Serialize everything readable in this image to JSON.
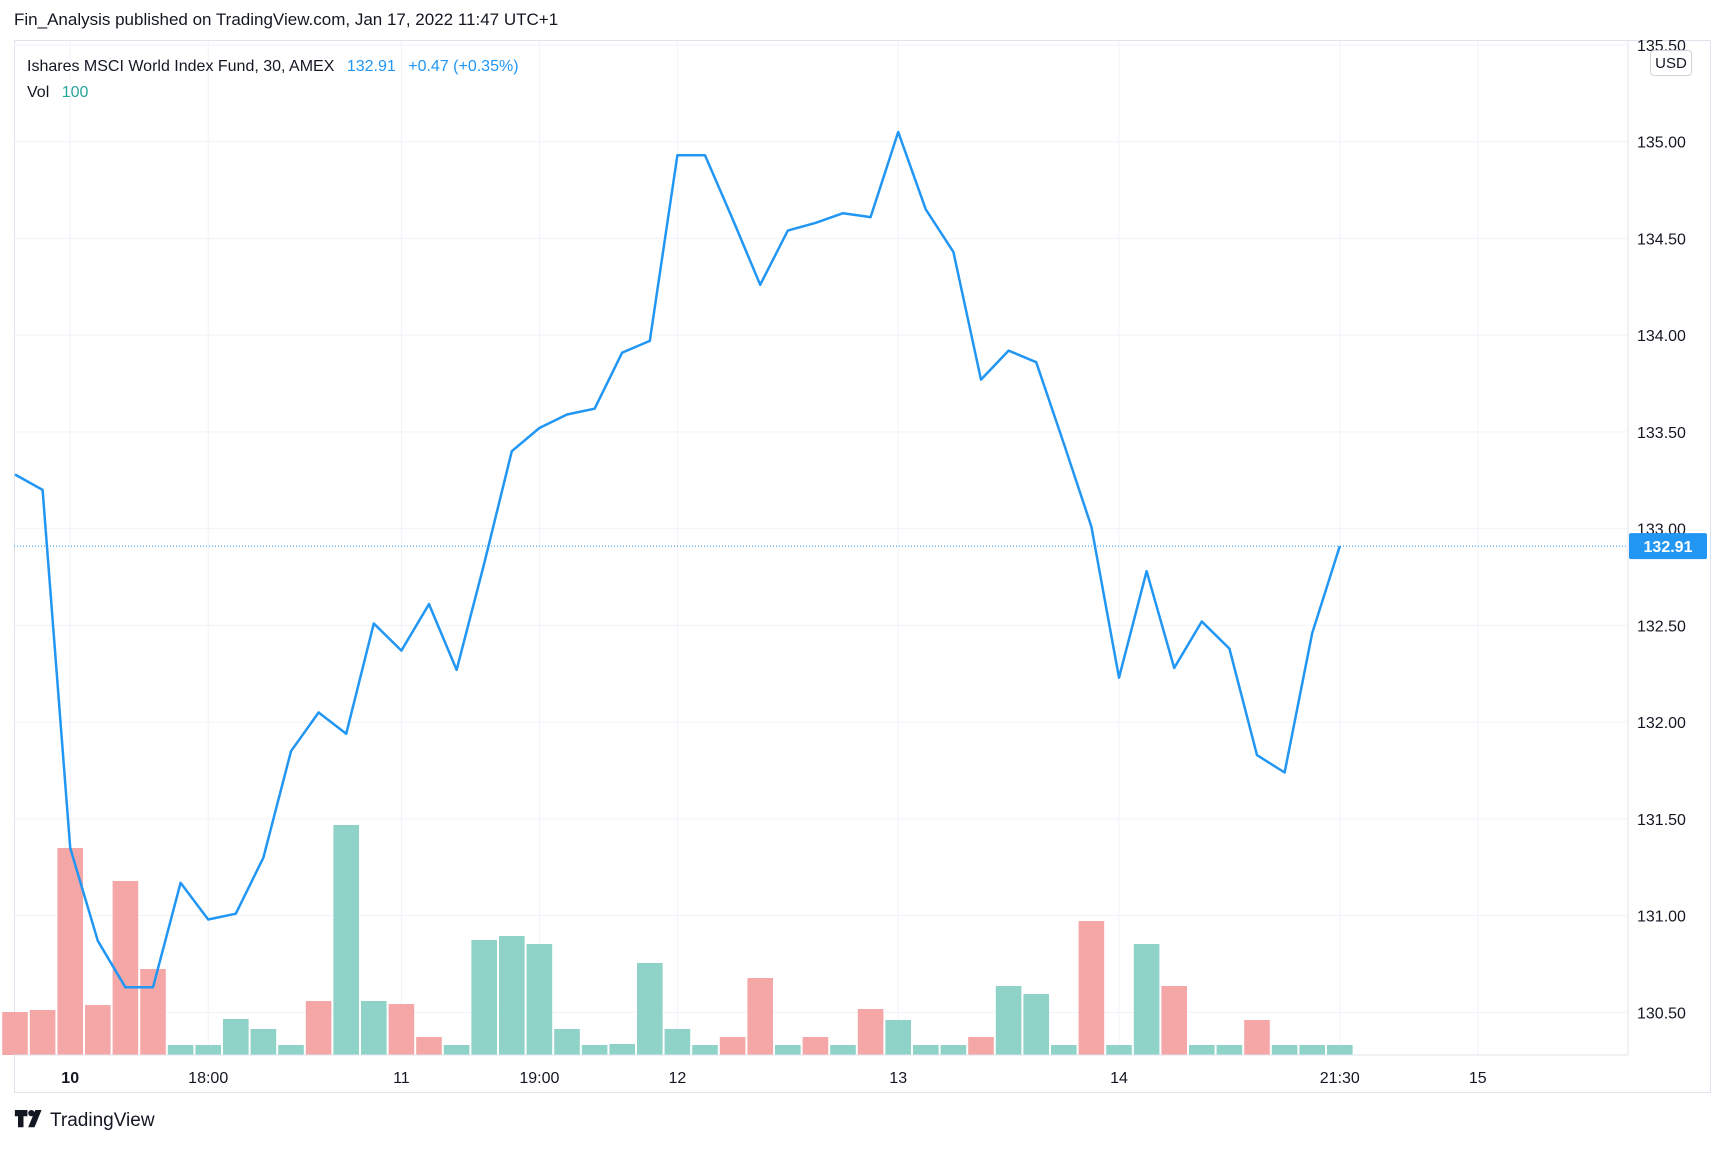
{
  "header": {
    "published_text": "Fin_Analysis published on TradingView.com, Jan 17, 2022 11:47 UTC+1"
  },
  "legend": {
    "symbol": "Ishares MSCI World Index Fund, 30, AMEX",
    "last": "132.91",
    "change": "+0.47 (+0.35%)",
    "vol_label": "Vol",
    "vol_value": "100"
  },
  "currency_button": "USD",
  "price_badge": "132.91",
  "footer": {
    "brand": "TradingView",
    "logo_icon": "tradingview-logo-icon"
  },
  "colors": {
    "line": "#2196f3",
    "vol_up": "#8fd2c8",
    "vol_down": "#f5a6a6",
    "badge": "#2196f3"
  },
  "chart_data": {
    "type": "line",
    "series": [
      {
        "name": "Ishares MSCI World Index Fund",
        "values": [
          133.28,
          133.2,
          131.35,
          130.87,
          130.63,
          130.63,
          131.17,
          130.98,
          131.01,
          131.3,
          131.85,
          132.05,
          131.94,
          132.51,
          132.37,
          132.61,
          132.27,
          132.82,
          133.4,
          133.52,
          133.59,
          133.62,
          133.91,
          133.97,
          134.93,
          134.93,
          134.6,
          134.26,
          134.54,
          134.58,
          134.63,
          134.61,
          135.05,
          134.65,
          134.43,
          133.77,
          133.92,
          133.86,
          133.44,
          133.01,
          132.23,
          132.78,
          132.28,
          132.52,
          132.38,
          131.83,
          131.74,
          132.46,
          132.91
        ]
      }
    ],
    "volume": [
      {
        "v": 43,
        "dir": "down"
      },
      {
        "v": 45,
        "dir": "down"
      },
      {
        "v": 207,
        "dir": "down"
      },
      {
        "v": 50,
        "dir": "down"
      },
      {
        "v": 174,
        "dir": "down"
      },
      {
        "v": 86,
        "dir": "down"
      },
      {
        "v": 10,
        "dir": "up"
      },
      {
        "v": 10,
        "dir": "up"
      },
      {
        "v": 36,
        "dir": "up"
      },
      {
        "v": 26,
        "dir": "up"
      },
      {
        "v": 10,
        "dir": "up"
      },
      {
        "v": 54,
        "dir": "down"
      },
      {
        "v": 230,
        "dir": "up"
      },
      {
        "v": 54,
        "dir": "up"
      },
      {
        "v": 51,
        "dir": "down"
      },
      {
        "v": 18,
        "dir": "down"
      },
      {
        "v": 10,
        "dir": "up"
      },
      {
        "v": 115,
        "dir": "up"
      },
      {
        "v": 119,
        "dir": "up"
      },
      {
        "v": 111,
        "dir": "up"
      },
      {
        "v": 26,
        "dir": "up"
      },
      {
        "v": 10,
        "dir": "up"
      },
      {
        "v": 11,
        "dir": "up"
      },
      {
        "v": 92,
        "dir": "up"
      },
      {
        "v": 26,
        "dir": "up"
      },
      {
        "v": 10,
        "dir": "up"
      },
      {
        "v": 18,
        "dir": "down"
      },
      {
        "v": 77,
        "dir": "down"
      },
      {
        "v": 10,
        "dir": "up"
      },
      {
        "v": 18,
        "dir": "down"
      },
      {
        "v": 10,
        "dir": "up"
      },
      {
        "v": 46,
        "dir": "down"
      },
      {
        "v": 35,
        "dir": "up"
      },
      {
        "v": 10,
        "dir": "up"
      },
      {
        "v": 10,
        "dir": "up"
      },
      {
        "v": 18,
        "dir": "down"
      },
      {
        "v": 69,
        "dir": "up"
      },
      {
        "v": 61,
        "dir": "up"
      },
      {
        "v": 10,
        "dir": "up"
      },
      {
        "v": 134,
        "dir": "down"
      },
      {
        "v": 10,
        "dir": "up"
      },
      {
        "v": 111,
        "dir": "up"
      },
      {
        "v": 69,
        "dir": "down"
      },
      {
        "v": 10,
        "dir": "up"
      },
      {
        "v": 10,
        "dir": "up"
      },
      {
        "v": 35,
        "dir": "down"
      },
      {
        "v": 10,
        "dir": "up"
      },
      {
        "v": 10,
        "dir": "up"
      },
      {
        "v": 10,
        "dir": "up"
      }
    ],
    "x_ticks": [
      {
        "label": "10",
        "index": 2,
        "bold": true
      },
      {
        "label": "18:00",
        "index": 7,
        "bold": false
      },
      {
        "label": "11",
        "index": 14,
        "bold": false
      },
      {
        "label": "19:00",
        "index": 19,
        "bold": false
      },
      {
        "label": "12",
        "index": 24,
        "bold": false
      },
      {
        "label": "13",
        "index": 32,
        "bold": false
      },
      {
        "label": "14",
        "index": 40,
        "bold": false
      },
      {
        "label": "21:30",
        "index": 48,
        "bold": false
      },
      {
        "label": "15",
        "index": 53,
        "bold": false
      }
    ],
    "y_ticks": [
      "135.50",
      "135.00",
      "134.50",
      "134.00",
      "133.50",
      "133.00",
      "132.50",
      "132.00",
      "131.50",
      "131.00",
      "130.50"
    ],
    "ylim": [
      130.28,
      135.52
    ],
    "last_value": 132.91,
    "grid": true
  }
}
